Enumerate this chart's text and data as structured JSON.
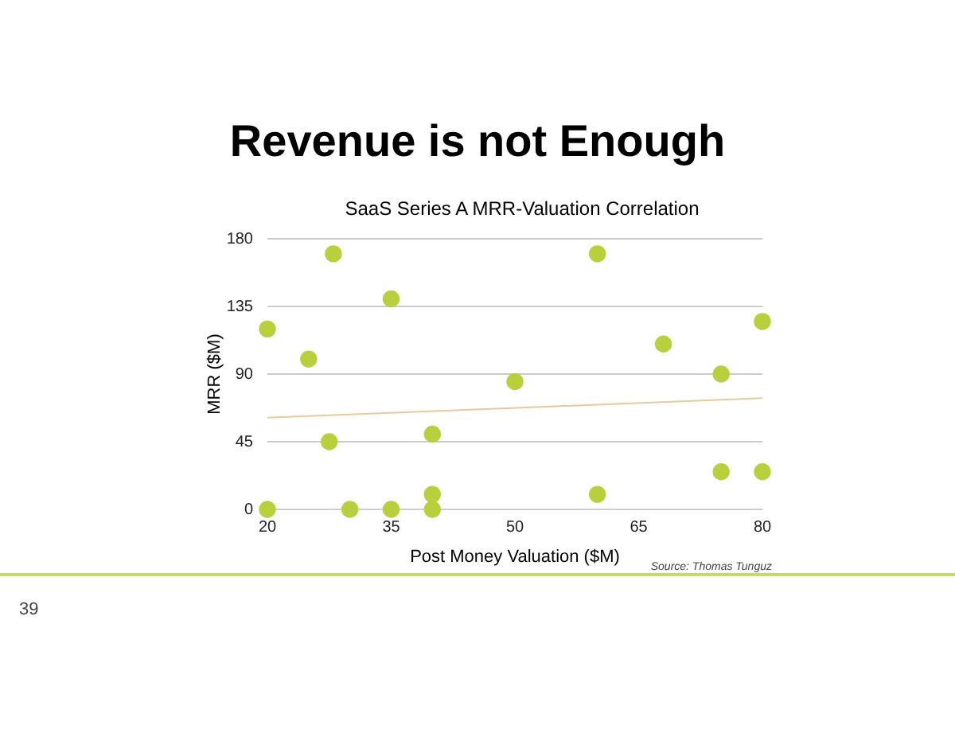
{
  "chart_data": {
    "type": "scatter",
    "title": "Revenue is not Enough",
    "subtitle": "SaaS Series A MRR-Valuation Correlation",
    "xlabel": "Post Money Valuation ($M)",
    "ylabel": "MRR ($M)",
    "xlim": [
      20,
      80
    ],
    "xticks": [
      20,
      35,
      50,
      65,
      80
    ],
    "ylim": [
      0,
      180
    ],
    "yticks": [
      0,
      45,
      90,
      135,
      180
    ],
    "grid": "y",
    "series": [
      {
        "marker": "circle",
        "color": "#b9d03c",
        "x": [
          28,
          60,
          35,
          20,
          25,
          68,
          80,
          75,
          50,
          27.5,
          40,
          75,
          80,
          40,
          60,
          20,
          30,
          35,
          40
        ],
        "values": [
          170,
          170,
          140,
          120,
          100,
          110,
          125,
          90,
          85,
          45,
          50,
          25,
          25,
          10,
          10,
          0,
          0,
          0,
          0
        ]
      },
      {
        "type": "line",
        "color": "#e8c9a0",
        "x": [
          20,
          80
        ],
        "values": [
          61,
          74
        ]
      }
    ],
    "annotations": [
      "Source: Thomas Tunguz",
      "39"
    ]
  }
}
